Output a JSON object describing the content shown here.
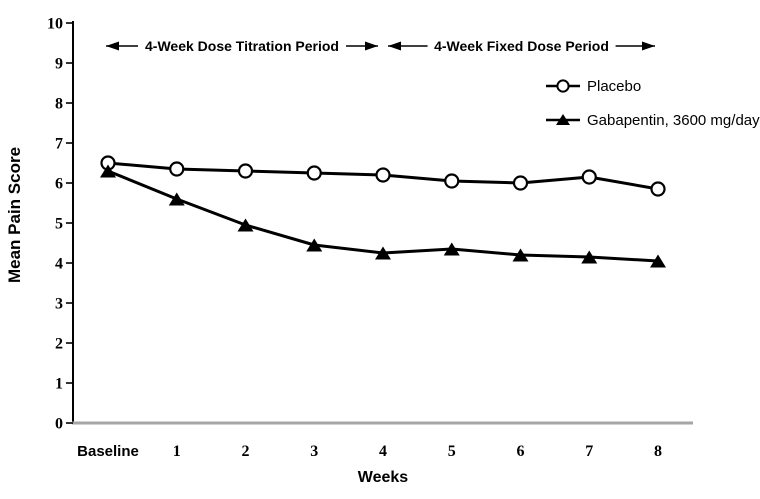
{
  "chart_data": {
    "type": "line",
    "title": "",
    "xlabel": "Weeks",
    "ylabel": "Mean Pain Score",
    "x_tick_labels": [
      "Baseline",
      "1",
      "2",
      "3",
      "4",
      "5",
      "6",
      "7",
      "8"
    ],
    "y_ticks": [
      0,
      1,
      2,
      3,
      4,
      5,
      6,
      7,
      8,
      9,
      10
    ],
    "ylim": [
      0,
      10
    ],
    "grid": false,
    "legend_position": "upper right",
    "series": [
      {
        "name": "Placebo",
        "marker": "open-circle",
        "values": [
          6.5,
          6.35,
          6.3,
          6.25,
          6.2,
          6.05,
          6.0,
          6.15,
          5.85
        ]
      },
      {
        "name": "Gabapentin, 3600 mg/day",
        "marker": "filled-triangle",
        "values": [
          6.3,
          5.6,
          4.95,
          4.45,
          4.25,
          4.35,
          4.2,
          4.15,
          4.05
        ]
      }
    ],
    "annotations": [
      {
        "label": "4-Week Dose Titration Period",
        "from_index": 0,
        "to_index": 4
      },
      {
        "label": "4-Week Fixed Dose Period",
        "from_index": 4,
        "to_index": 8
      }
    ],
    "colors": {
      "series_line": "#000000",
      "x_axis_line": "#a6a6a6",
      "y_axis_line": "#000000",
      "text": "#000000"
    }
  }
}
